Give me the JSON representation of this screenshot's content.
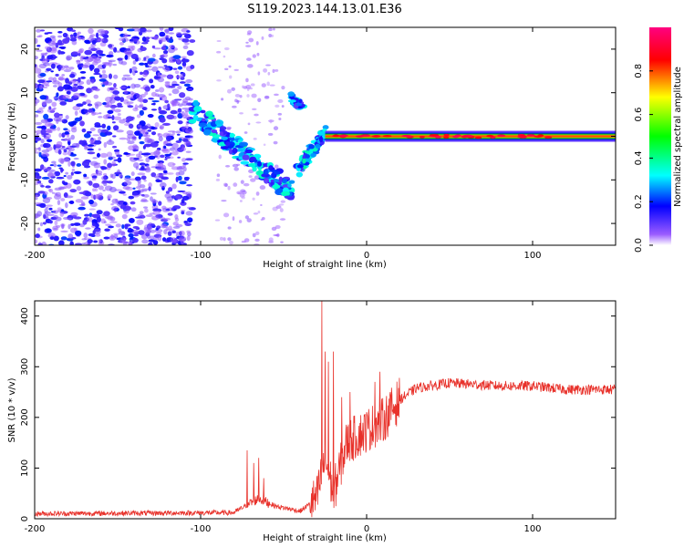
{
  "title": "S119.2023.144.13.01.E36",
  "chart_data": [
    {
      "type": "heatmap",
      "xlabel": "Height of straight line (km)",
      "ylabel": "Frequency (Hz)",
      "xlim": [
        -200,
        150
      ],
      "ylim": [
        -25,
        25
      ],
      "xticks": [
        -200,
        -100,
        0,
        100
      ],
      "yticks": [
        -20,
        -10,
        0,
        10,
        20
      ],
      "colorbar": {
        "label": "Normalized spectral amplitude",
        "range": [
          0,
          1
        ],
        "ticks": [
          "0.0",
          "0.2",
          "0.4",
          "0.6",
          "0.8"
        ],
        "tick_values": [
          0,
          0.2,
          0.4,
          0.6,
          0.8
        ],
        "stops": [
          "#ffffff",
          "#7a00ff",
          "#0000ff",
          "#00ffff",
          "#00ff00",
          "#ffff00",
          "#ff0000",
          "#ff0080"
        ]
      },
      "features": [
        {
          "name": "noise",
          "x": [
            -200,
            -105
          ],
          "f": [
            -25,
            25
          ],
          "amp": 0.15
        },
        {
          "name": "sparse-noise",
          "x": [
            -90,
            -50
          ],
          "f": [
            -25,
            25
          ],
          "amp": 0.08
        },
        {
          "name": "chirp-lower",
          "x": [
            -105,
            -45
          ],
          "f": [
            6,
            -13
          ],
          "amp": 0.4
        },
        {
          "name": "chirp-upper",
          "x": [
            -45,
            -38
          ],
          "f": [
            9,
            6
          ],
          "amp": 0.3
        },
        {
          "name": "chirp-rise",
          "x": [
            -42,
            -25
          ],
          "f": [
            -8,
            1
          ],
          "amp": 0.45
        },
        {
          "name": "carrier",
          "x": [
            -25,
            150
          ],
          "f": [
            0,
            0
          ],
          "amp": 0.95
        }
      ]
    },
    {
      "type": "line",
      "xlabel": "Height of straight line (km)",
      "ylabel": "SNR (10 * v/v)",
      "xlim": [
        -200,
        150
      ],
      "ylim": [
        0,
        430
      ],
      "xticks": [
        -200,
        -100,
        0,
        100
      ],
      "yticks": [
        0,
        100,
        200,
        300,
        400
      ],
      "color": "#e8312a",
      "baseline": [
        [
          -200,
          10
        ],
        [
          -80,
          12
        ],
        [
          -65,
          40
        ],
        [
          -55,
          25
        ],
        [
          -40,
          15
        ],
        [
          -30,
          40
        ],
        [
          -25,
          120
        ],
        [
          -20,
          50
        ],
        [
          -12,
          150
        ],
        [
          0,
          175
        ],
        [
          10,
          195
        ],
        [
          20,
          235
        ],
        [
          30,
          258
        ],
        [
          50,
          268
        ],
        [
          80,
          262
        ],
        [
          100,
          262
        ],
        [
          120,
          255
        ],
        [
          150,
          255
        ]
      ],
      "spikes": [
        [
          -72,
          135
        ],
        [
          -68,
          110
        ],
        [
          -65,
          120
        ],
        [
          -62,
          80
        ],
        [
          -27,
          430
        ],
        [
          -25,
          330
        ],
        [
          -23,
          310
        ],
        [
          -20,
          330
        ],
        [
          -15,
          240
        ],
        [
          -10,
          250
        ],
        [
          5,
          270
        ],
        [
          8,
          290
        ]
      ]
    }
  ]
}
